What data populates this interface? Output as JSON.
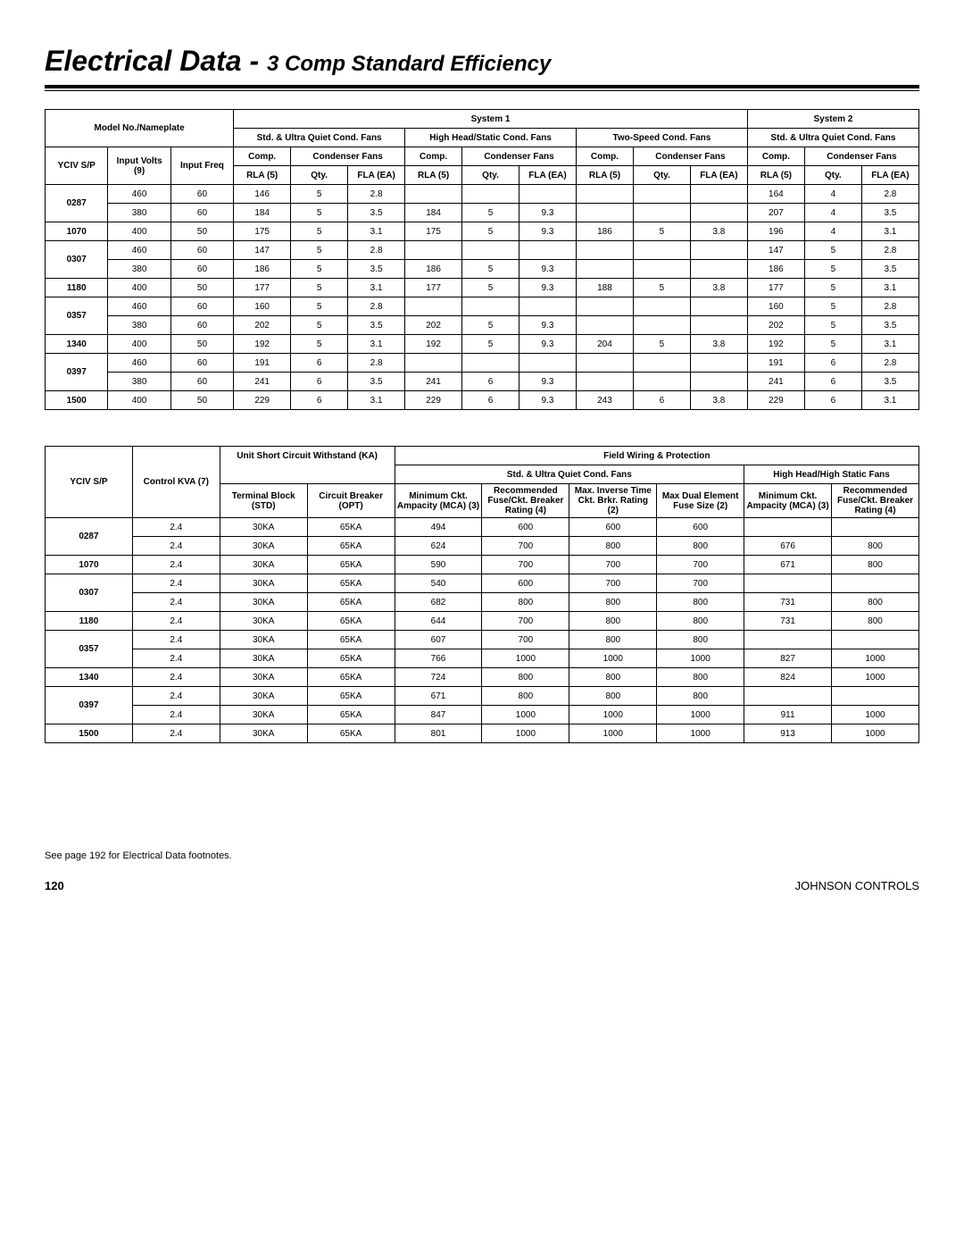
{
  "page": {
    "title_main": "Electrical Data - ",
    "title_sub": "3 Comp Standard Efficiency",
    "footnote": "See page 192 for Electrical Data footnotes.",
    "page_number": "120",
    "company": "JOHNSON CONTROLS"
  },
  "table1": {
    "headers": {
      "model_nameplate": "Model No./Nameplate",
      "system1": "System 1",
      "system2": "System 2",
      "std_quiet": "Std. & Ultra Quiet Cond. Fans",
      "high_head": "High Head/Static Cond. Fans",
      "two_speed": "Two-Speed Cond. Fans",
      "yciv": "YCIV S/P",
      "input_volts": "Input Volts (9)",
      "input_freq": "Input Freq",
      "comp": "Comp.",
      "cond_fans": "Condenser Fans",
      "rla": "RLA (5)",
      "qty": "Qty.",
      "fla": "FLA (EA)"
    },
    "rows": [
      {
        "model": "0287",
        "volts": "460",
        "freq": "60",
        "s1a_rla": "146",
        "s1a_qty": "5",
        "s1a_fla": "2.8",
        "s1b_rla": "",
        "s1b_qty": "",
        "s1b_fla": "",
        "s1c_rla": "",
        "s1c_qty": "",
        "s1c_fla": "",
        "s2_rla": "164",
        "s2_qty": "4",
        "s2_fla": "2.8"
      },
      {
        "model": "",
        "volts": "380",
        "freq": "60",
        "s1a_rla": "184",
        "s1a_qty": "5",
        "s1a_fla": "3.5",
        "s1b_rla": "184",
        "s1b_qty": "5",
        "s1b_fla": "9.3",
        "s1c_rla": "",
        "s1c_qty": "",
        "s1c_fla": "",
        "s2_rla": "207",
        "s2_qty": "4",
        "s2_fla": "3.5"
      },
      {
        "model": "1070",
        "volts": "400",
        "freq": "50",
        "s1a_rla": "175",
        "s1a_qty": "5",
        "s1a_fla": "3.1",
        "s1b_rla": "175",
        "s1b_qty": "5",
        "s1b_fla": "9.3",
        "s1c_rla": "186",
        "s1c_qty": "5",
        "s1c_fla": "3.8",
        "s2_rla": "196",
        "s2_qty": "4",
        "s2_fla": "3.1"
      },
      {
        "model": "0307",
        "volts": "460",
        "freq": "60",
        "s1a_rla": "147",
        "s1a_qty": "5",
        "s1a_fla": "2.8",
        "s1b_rla": "",
        "s1b_qty": "",
        "s1b_fla": "",
        "s1c_rla": "",
        "s1c_qty": "",
        "s1c_fla": "",
        "s2_rla": "147",
        "s2_qty": "5",
        "s2_fla": "2.8"
      },
      {
        "model": "",
        "volts": "380",
        "freq": "60",
        "s1a_rla": "186",
        "s1a_qty": "5",
        "s1a_fla": "3.5",
        "s1b_rla": "186",
        "s1b_qty": "5",
        "s1b_fla": "9.3",
        "s1c_rla": "",
        "s1c_qty": "",
        "s1c_fla": "",
        "s2_rla": "186",
        "s2_qty": "5",
        "s2_fla": "3.5"
      },
      {
        "model": "1180",
        "volts": "400",
        "freq": "50",
        "s1a_rla": "177",
        "s1a_qty": "5",
        "s1a_fla": "3.1",
        "s1b_rla": "177",
        "s1b_qty": "5",
        "s1b_fla": "9.3",
        "s1c_rla": "188",
        "s1c_qty": "5",
        "s1c_fla": "3.8",
        "s2_rla": "177",
        "s2_qty": "5",
        "s2_fla": "3.1"
      },
      {
        "model": "0357",
        "volts": "460",
        "freq": "60",
        "s1a_rla": "160",
        "s1a_qty": "5",
        "s1a_fla": "2.8",
        "s1b_rla": "",
        "s1b_qty": "",
        "s1b_fla": "",
        "s1c_rla": "",
        "s1c_qty": "",
        "s1c_fla": "",
        "s2_rla": "160",
        "s2_qty": "5",
        "s2_fla": "2.8"
      },
      {
        "model": "",
        "volts": "380",
        "freq": "60",
        "s1a_rla": "202",
        "s1a_qty": "5",
        "s1a_fla": "3.5",
        "s1b_rla": "202",
        "s1b_qty": "5",
        "s1b_fla": "9.3",
        "s1c_rla": "",
        "s1c_qty": "",
        "s1c_fla": "",
        "s2_rla": "202",
        "s2_qty": "5",
        "s2_fla": "3.5"
      },
      {
        "model": "1340",
        "volts": "400",
        "freq": "50",
        "s1a_rla": "192",
        "s1a_qty": "5",
        "s1a_fla": "3.1",
        "s1b_rla": "192",
        "s1b_qty": "5",
        "s1b_fla": "9.3",
        "s1c_rla": "204",
        "s1c_qty": "5",
        "s1c_fla": "3.8",
        "s2_rla": "192",
        "s2_qty": "5",
        "s2_fla": "3.1"
      },
      {
        "model": "0397",
        "volts": "460",
        "freq": "60",
        "s1a_rla": "191",
        "s1a_qty": "6",
        "s1a_fla": "2.8",
        "s1b_rla": "",
        "s1b_qty": "",
        "s1b_fla": "",
        "s1c_rla": "",
        "s1c_qty": "",
        "s1c_fla": "",
        "s2_rla": "191",
        "s2_qty": "6",
        "s2_fla": "2.8"
      },
      {
        "model": "",
        "volts": "380",
        "freq": "60",
        "s1a_rla": "241",
        "s1a_qty": "6",
        "s1a_fla": "3.5",
        "s1b_rla": "241",
        "s1b_qty": "6",
        "s1b_fla": "9.3",
        "s1c_rla": "",
        "s1c_qty": "",
        "s1c_fla": "",
        "s2_rla": "241",
        "s2_qty": "6",
        "s2_fla": "3.5"
      },
      {
        "model": "1500",
        "volts": "400",
        "freq": "50",
        "s1a_rla": "229",
        "s1a_qty": "6",
        "s1a_fla": "3.1",
        "s1b_rla": "229",
        "s1b_qty": "6",
        "s1b_fla": "9.3",
        "s1c_rla": "243",
        "s1c_qty": "6",
        "s1c_fla": "3.8",
        "s2_rla": "229",
        "s2_qty": "6",
        "s2_fla": "3.1"
      }
    ]
  },
  "table2": {
    "headers": {
      "yciv": "YCIV S/P",
      "control_kva": "Control KVA (7)",
      "unit_short": "Unit Short Circuit Withstand (KA)",
      "field_wiring": "Field Wiring & Protection",
      "std_quiet": "Std. & Ultra Quiet Cond. Fans",
      "high_head": "High Head/High Static Fans",
      "term_block": "Terminal Block (STD)",
      "circ_breaker": "Circuit Breaker (OPT)",
      "min_ckt": "Minimum Ckt. Ampacity (MCA) (3)",
      "rec_fuse": "Recommended Fuse/Ckt. Breaker Rating (4)",
      "max_inverse": "Max. Inverse Time Ckt. Brkr. Rating (2)",
      "max_dual": "Max Dual Element Fuse Size (2)"
    },
    "rows": [
      {
        "model": "0287",
        "kva": "2.4",
        "tb": "30KA",
        "cb": "65KA",
        "sq_mca": "494",
        "sq_fuse": "600",
        "sq_inv": "600",
        "sq_dual": "600",
        "hh_mca": "",
        "hh_fuse": ""
      },
      {
        "model": "",
        "kva": "2.4",
        "tb": "30KA",
        "cb": "65KA",
        "sq_mca": "624",
        "sq_fuse": "700",
        "sq_inv": "800",
        "sq_dual": "800",
        "hh_mca": "676",
        "hh_fuse": "800"
      },
      {
        "model": "1070",
        "kva": "2.4",
        "tb": "30KA",
        "cb": "65KA",
        "sq_mca": "590",
        "sq_fuse": "700",
        "sq_inv": "700",
        "sq_dual": "700",
        "hh_mca": "671",
        "hh_fuse": "800"
      },
      {
        "model": "0307",
        "kva": "2.4",
        "tb": "30KA",
        "cb": "65KA",
        "sq_mca": "540",
        "sq_fuse": "600",
        "sq_inv": "700",
        "sq_dual": "700",
        "hh_mca": "",
        "hh_fuse": ""
      },
      {
        "model": "",
        "kva": "2.4",
        "tb": "30KA",
        "cb": "65KA",
        "sq_mca": "682",
        "sq_fuse": "800",
        "sq_inv": "800",
        "sq_dual": "800",
        "hh_mca": "731",
        "hh_fuse": "800"
      },
      {
        "model": "1180",
        "kva": "2.4",
        "tb": "30KA",
        "cb": "65KA",
        "sq_mca": "644",
        "sq_fuse": "700",
        "sq_inv": "800",
        "sq_dual": "800",
        "hh_mca": "731",
        "hh_fuse": "800"
      },
      {
        "model": "0357",
        "kva": "2.4",
        "tb": "30KA",
        "cb": "65KA",
        "sq_mca": "607",
        "sq_fuse": "700",
        "sq_inv": "800",
        "sq_dual": "800",
        "hh_mca": "",
        "hh_fuse": ""
      },
      {
        "model": "",
        "kva": "2.4",
        "tb": "30KA",
        "cb": "65KA",
        "sq_mca": "766",
        "sq_fuse": "1000",
        "sq_inv": "1000",
        "sq_dual": "1000",
        "hh_mca": "827",
        "hh_fuse": "1000"
      },
      {
        "model": "1340",
        "kva": "2.4",
        "tb": "30KA",
        "cb": "65KA",
        "sq_mca": "724",
        "sq_fuse": "800",
        "sq_inv": "800",
        "sq_dual": "800",
        "hh_mca": "824",
        "hh_fuse": "1000"
      },
      {
        "model": "0397",
        "kva": "2.4",
        "tb": "30KA",
        "cb": "65KA",
        "sq_mca": "671",
        "sq_fuse": "800",
        "sq_inv": "800",
        "sq_dual": "800",
        "hh_mca": "",
        "hh_fuse": ""
      },
      {
        "model": "",
        "kva": "2.4",
        "tb": "30KA",
        "cb": "65KA",
        "sq_mca": "847",
        "sq_fuse": "1000",
        "sq_inv": "1000",
        "sq_dual": "1000",
        "hh_mca": "911",
        "hh_fuse": "1000"
      },
      {
        "model": "1500",
        "kva": "2.4",
        "tb": "30KA",
        "cb": "65KA",
        "sq_mca": "801",
        "sq_fuse": "1000",
        "sq_inv": "1000",
        "sq_dual": "1000",
        "hh_mca": "913",
        "hh_fuse": "1000"
      }
    ]
  }
}
